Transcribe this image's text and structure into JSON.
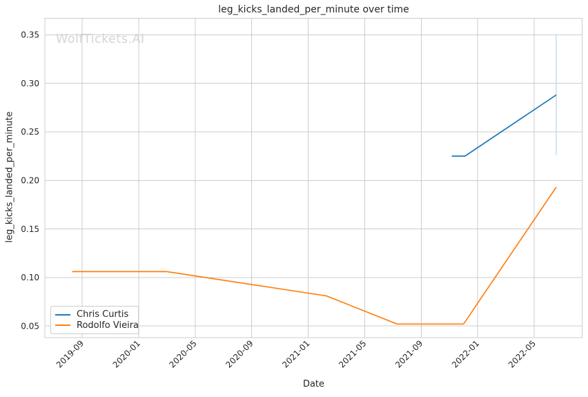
{
  "watermark": "WolfTickets.AI",
  "colors": {
    "grid": "#cccccc",
    "spine": "#cccccc",
    "text": "#262626",
    "watermark": "#d5d5d5",
    "background": "#ffffff"
  },
  "chart_data": {
    "type": "line",
    "title": "leg_kicks_landed_per_minute over time",
    "xlabel": "Date",
    "ylabel": "leg_kicks_landed_per_minute",
    "grid": true,
    "legend_position": "lower-left",
    "x_ticks": [
      {
        "label": "2019-09",
        "date": "2019-09-01"
      },
      {
        "label": "2020-01",
        "date": "2020-01-01"
      },
      {
        "label": "2020-05",
        "date": "2020-05-01"
      },
      {
        "label": "2020-09",
        "date": "2020-09-01"
      },
      {
        "label": "2021-01",
        "date": "2021-01-01"
      },
      {
        "label": "2021-05",
        "date": "2021-05-01"
      },
      {
        "label": "2021-09",
        "date": "2021-09-01"
      },
      {
        "label": "2022-01",
        "date": "2022-01-01"
      },
      {
        "label": "2022-05",
        "date": "2022-05-01"
      }
    ],
    "y_ticks": [
      0.05,
      0.1,
      0.15,
      0.2,
      0.25,
      0.3,
      0.35
    ],
    "x_range": [
      "2019-06-12",
      "2022-08-13"
    ],
    "ylim": [
      0.038,
      0.367
    ],
    "series": [
      {
        "name": "Chris Curtis",
        "color": "#1f77b4",
        "points": [
          {
            "date": "2021-11-06",
            "value": 0.225
          },
          {
            "date": "2021-12-04",
            "value": 0.225
          },
          {
            "date": "2022-06-18",
            "value": 0.288
          }
        ]
      },
      {
        "name": "Rodolfo Vieira",
        "color": "#ff7f0e",
        "points": [
          {
            "date": "2019-08-10",
            "value": 0.106
          },
          {
            "date": "2020-03-01",
            "value": 0.106
          },
          {
            "date": "2021-02-10",
            "value": 0.081
          },
          {
            "date": "2021-07-10",
            "value": 0.052
          },
          {
            "date": "2021-12-01",
            "value": 0.052
          },
          {
            "date": "2022-06-18",
            "value": 0.193
          }
        ]
      }
    ],
    "error_bar": {
      "series": "Chris Curtis",
      "date": "2022-06-18",
      "low": 0.226,
      "high": 0.35,
      "color": "#b9d7ea"
    }
  }
}
